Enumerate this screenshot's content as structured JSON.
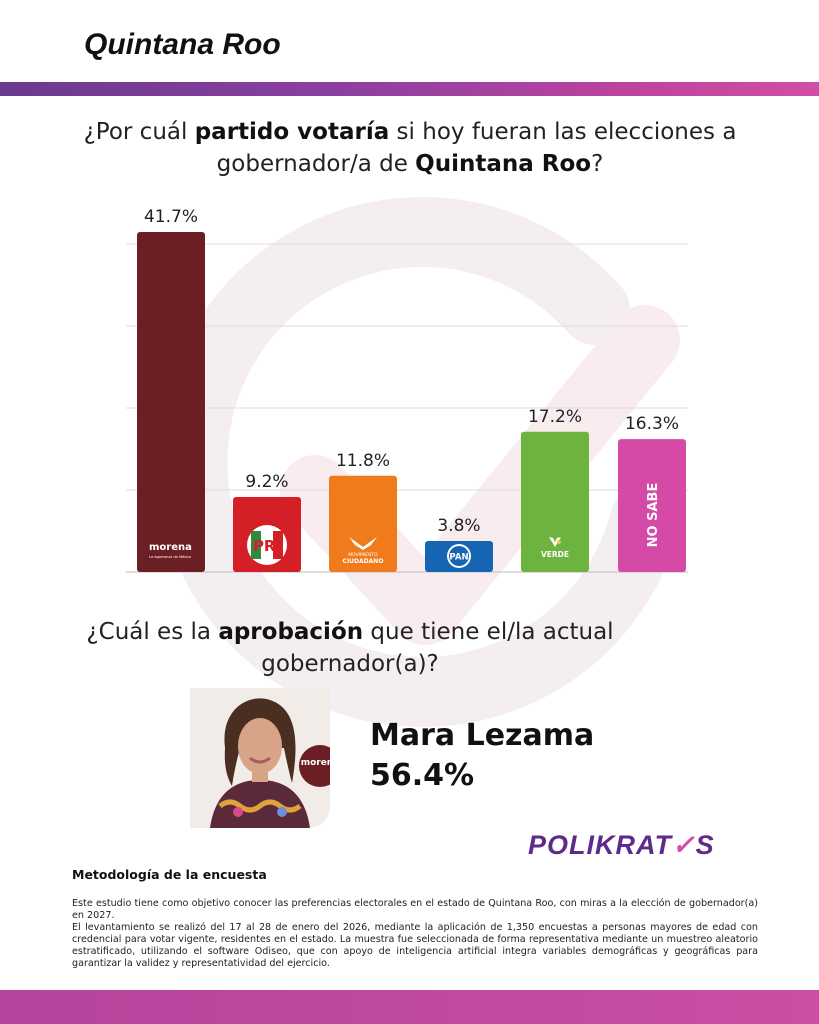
{
  "header": {
    "title": "Quintana Roo"
  },
  "question1": {
    "prefix": "¿Por cuál ",
    "bold1": "partido votaría",
    "middle": " si hoy fueran las elecciones a gobernador/a de ",
    "bold2": "Quintana Roo",
    "suffix": "?"
  },
  "chart_data": {
    "type": "bar",
    "title": "¿Por cuál partido votaría si hoy fueran las elecciones a gobernador/a de Quintana Roo?",
    "categories": [
      "morena",
      "PRI",
      "MOVIMIENTO CIUDADANO",
      "PAN",
      "VERDE",
      "NO SABE"
    ],
    "values": [
      41.7,
      9.2,
      11.8,
      3.8,
      17.2,
      16.3
    ],
    "value_labels": [
      "41.7%",
      "9.2%",
      "11.8%",
      "3.8%",
      "17.2%",
      "16.3%"
    ],
    "colors": [
      "#6b1f24",
      "#d41f26",
      "#f07b1d",
      "#1565b3",
      "#6cb33f",
      "#d44aa6"
    ],
    "ylim": [
      0,
      42
    ],
    "grid": true
  },
  "logos": {
    "morena": "morena",
    "morena_sub": "La esperanza de México",
    "pri": "PRI",
    "mc_top": "MOVIMIENTO",
    "mc_bottom": "CIUDADANO",
    "pan": "PAN",
    "verde": "VERDE",
    "nosabe": "NO SABE"
  },
  "question2": {
    "prefix": "¿Cuál es la ",
    "bold": "aprobación",
    "suffix": " que tiene el/la actual gobernador(a)?"
  },
  "candidate": {
    "name": "Mara Lezama",
    "approval": "56.4%",
    "party_badge": "morena"
  },
  "brand": {
    "name_a": "POLIKRAT",
    "name_check": "✓",
    "name_b": "S"
  },
  "methodology": {
    "title": "Metodología de la encuesta",
    "p1": "Este estudio tiene como objetivo conocer las preferencias electorales en el estado de Quintana Roo, con miras a la elección de gobernador(a) en 2027.",
    "p2": "El levantamiento se realizó del 17 al 28 de enero del 2026, mediante la aplicación de 1,350 encuestas a personas mayores de edad con credencial para votar vigente, residentes en el estado. La muestra fue seleccionada de forma representativa mediante un muestreo aleatorio estratificado, utilizando el software Odiseo, que con apoyo de inteligencia artificial integra variables demográficas y geográficas para garantizar la validez y representatividad del ejercicio."
  },
  "colors": {
    "accent_purple": "#5e2a8c",
    "accent_pink": "#d24ea6"
  }
}
